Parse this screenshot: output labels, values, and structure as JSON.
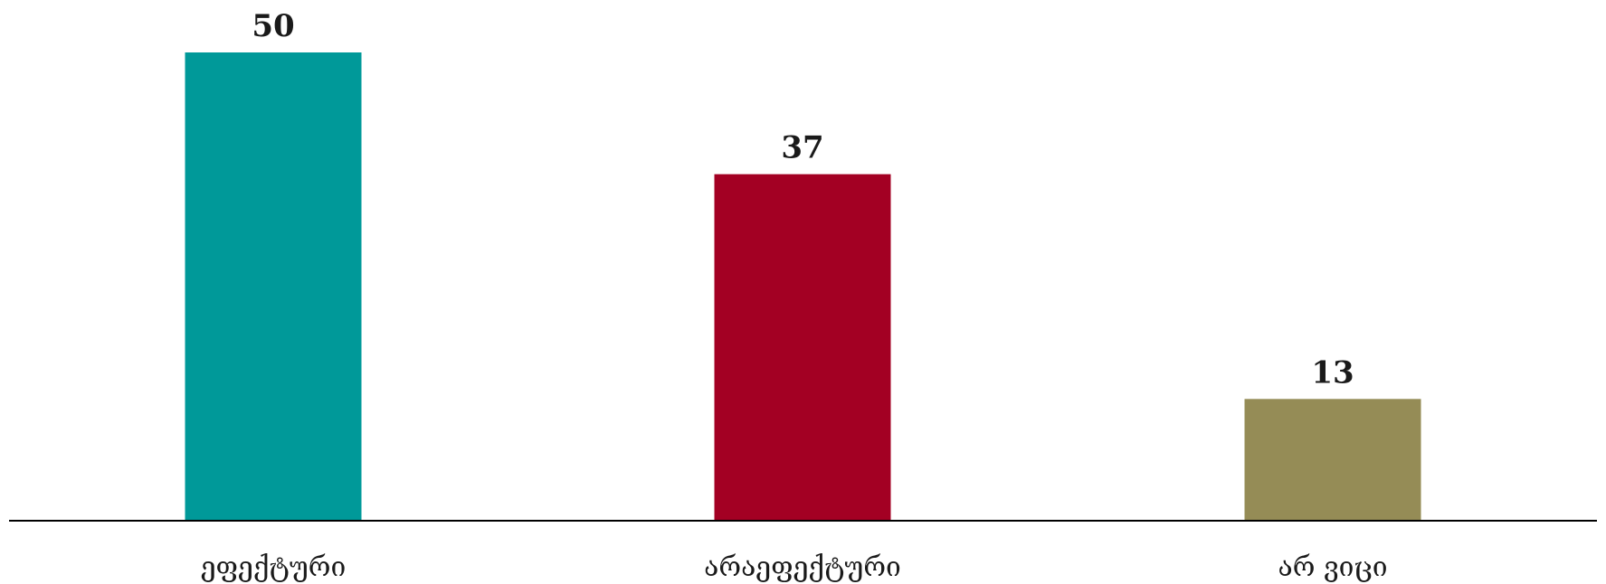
{
  "chart_data": {
    "type": "bar",
    "categories": [
      "ეფექტური",
      "არაეფექტური",
      "არ ვიცი"
    ],
    "values": [
      50,
      37,
      13
    ],
    "colors": [
      "#009999",
      "#A30023",
      "#958C56"
    ],
    "title": "",
    "xlabel": "",
    "ylabel": "",
    "ylim": [
      0,
      50
    ],
    "grid": false,
    "legend": "none",
    "data_labels": [
      "50",
      "37",
      "13"
    ],
    "axis_color": "#000000"
  }
}
